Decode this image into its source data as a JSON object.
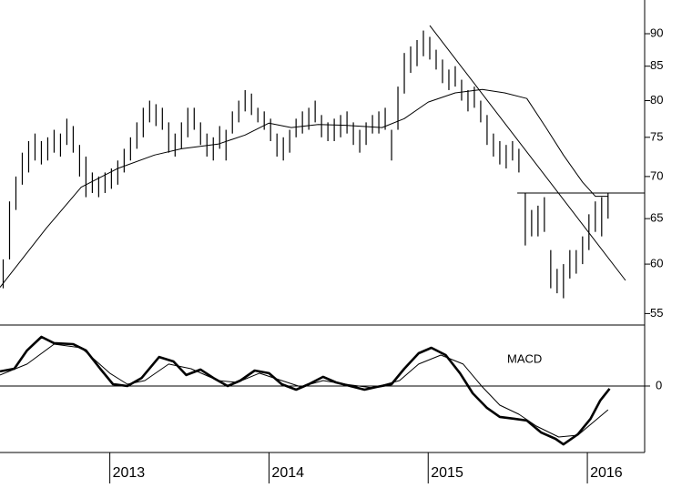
{
  "chart_data": {
    "type": "stock",
    "color": "#000000",
    "log_y": true,
    "xlim": [
      2012.31,
      2016.36
    ],
    "xticks": [
      2013,
      2014,
      2015,
      2016
    ],
    "ylim": [
      53.9,
      95.5
    ],
    "yticks": [
      55,
      60,
      65,
      70,
      75,
      80,
      85,
      90
    ],
    "x": [
      2012.33,
      2012.37,
      2012.41,
      2012.45,
      2012.49,
      2012.53,
      2012.57,
      2012.61,
      2012.65,
      2012.69,
      2012.73,
      2012.77,
      2012.81,
      2012.85,
      2012.89,
      2012.93,
      2012.97,
      2013.01,
      2013.05,
      2013.09,
      2013.13,
      2013.17,
      2013.21,
      2013.25,
      2013.29,
      2013.33,
      2013.37,
      2013.41,
      2013.45,
      2013.49,
      2013.53,
      2013.57,
      2013.61,
      2013.65,
      2013.69,
      2013.73,
      2013.77,
      2013.81,
      2013.85,
      2013.89,
      2013.93,
      2013.97,
      2014.01,
      2014.05,
      2014.09,
      2014.13,
      2014.17,
      2014.21,
      2014.25,
      2014.29,
      2014.33,
      2014.37,
      2014.41,
      2014.45,
      2014.49,
      2014.53,
      2014.57,
      2014.61,
      2014.65,
      2014.69,
      2014.73,
      2014.77,
      2014.81,
      2014.85,
      2014.89,
      2014.93,
      2014.97,
      2015.01,
      2015.05,
      2015.09,
      2015.13,
      2015.17,
      2015.21,
      2015.25,
      2015.29,
      2015.33,
      2015.37,
      2015.41,
      2015.45,
      2015.49,
      2015.53,
      2015.57,
      2015.61,
      2015.65,
      2015.69,
      2015.73,
      2015.77,
      2015.81,
      2015.85,
      2015.89,
      2015.93,
      2015.97,
      2016.01,
      2016.05,
      2016.09,
      2016.13
    ],
    "high": [
      60.5,
      67,
      70,
      73,
      74.5,
      75.5,
      74.5,
      75,
      76,
      75.5,
      77.5,
      76.5,
      74,
      72.5,
      70.5,
      70,
      70.5,
      71,
      72,
      73.5,
      75,
      77,
      79,
      80,
      79.5,
      79,
      77,
      75.5,
      77,
      79,
      79,
      77,
      75.5,
      75,
      76.5,
      76,
      78.5,
      80,
      81.5,
      81,
      79,
      78.5,
      77.5,
      75.5,
      75,
      76,
      77.5,
      78.5,
      79,
      80,
      78,
      77,
      77.5,
      78,
      78.5,
      77,
      76,
      77,
      78,
      78.5,
      79,
      76,
      82,
      87,
      88,
      89,
      90.5,
      89.5,
      87.5,
      86,
      84.5,
      85,
      83,
      81.5,
      82,
      80,
      78,
      75.5,
      74.5,
      74,
      74.5,
      73.5,
      68,
      66,
      66.5,
      67.5,
      61.5,
      59.5,
      60,
      61.5,
      61.5,
      63,
      65.5,
      67,
      67.5,
      68
    ],
    "low": [
      57.5,
      60.5,
      66,
      69,
      70.5,
      72,
      71.5,
      72,
      73,
      72.5,
      74,
      73,
      70,
      67.5,
      68,
      67.5,
      68,
      68.5,
      69,
      70.5,
      72,
      73.5,
      75,
      77,
      76.5,
      76,
      73,
      72.5,
      73.5,
      75,
      76,
      74,
      72.5,
      72,
      73.5,
      72,
      75.5,
      77,
      78.5,
      78,
      77,
      76,
      74.5,
      72.5,
      72,
      73,
      75,
      75.5,
      76,
      77,
      75,
      74.5,
      74.5,
      75,
      75.5,
      74,
      73,
      74,
      75.5,
      75.5,
      76,
      72,
      76,
      81,
      84,
      85,
      86.5,
      86,
      84.5,
      82.5,
      81.5,
      82,
      80,
      78.5,
      79,
      77,
      74,
      72.5,
      71.5,
      71,
      72,
      70.5,
      62,
      63,
      63,
      63.5,
      57.5,
      57,
      56.5,
      58.5,
      59,
      60,
      61.5,
      63.5,
      63,
      65
    ],
    "moving_average": {
      "x": [
        2012.31,
        2012.6,
        2012.82,
        2013.05,
        2013.28,
        2013.45,
        2013.68,
        2013.85,
        2014.0,
        2014.14,
        2014.31,
        2014.48,
        2014.71,
        2014.85,
        2015.0,
        2015.17,
        2015.34,
        2015.48,
        2015.62,
        2015.74,
        2015.85,
        2015.97,
        2016.05,
        2016.13
      ],
      "values": [
        57.6,
        63.9,
        68.7,
        71.0,
        72.7,
        73.5,
        74.1,
        75.3,
        76.9,
        76.3,
        76.7,
        76.6,
        76.3,
        77.5,
        79.8,
        81.1,
        81.6,
        81.1,
        80.3,
        76.3,
        72.7,
        69.3,
        67.6,
        67.6
      ]
    },
    "trendlines": [
      {
        "x": [
          2015.01,
          2016.24
        ],
        "y": [
          91.3,
          58.3
        ]
      },
      {
        "x": [
          2015.56,
          2016.36
        ],
        "y": [
          68,
          68
        ]
      }
    ],
    "macd": {
      "label": "MACD",
      "ylim": [
        -3.27,
        3
      ],
      "yticks": [
        0
      ],
      "line": {
        "x": [
          2012.31,
          2012.4,
          2012.48,
          2012.57,
          2012.65,
          2012.77,
          2012.85,
          2012.94,
          2013.02,
          2013.11,
          2013.2,
          2013.31,
          2013.4,
          2013.48,
          2013.57,
          2013.65,
          2013.74,
          2013.82,
          2013.91,
          2014.0,
          2014.08,
          2014.17,
          2014.25,
          2014.34,
          2014.42,
          2014.51,
          2014.6,
          2014.68,
          2014.77,
          2014.85,
          2014.94,
          2015.02,
          2015.11,
          2015.2,
          2015.28,
          2015.37,
          2015.45,
          2015.54,
          2015.62,
          2015.71,
          2015.8,
          2015.85,
          2015.94,
          2016.02,
          2016.08,
          2016.14
        ],
        "values": [
          0.72,
          0.85,
          1.75,
          2.42,
          2.11,
          2.06,
          1.75,
          0.85,
          0.09,
          0,
          0.4,
          1.43,
          1.21,
          0.54,
          0.81,
          0.4,
          0,
          0.27,
          0.76,
          0.63,
          0.09,
          -0.18,
          0.09,
          0.45,
          0.18,
          0,
          -0.18,
          -0.04,
          0.09,
          0.85,
          1.61,
          1.88,
          1.52,
          0.63,
          -0.36,
          -1.08,
          -1.52,
          -1.61,
          -1.7,
          -2.29,
          -2.6,
          -2.87,
          -2.38,
          -1.61,
          -0.72,
          -0.13
        ]
      },
      "signal": {
        "x": [
          2012.31,
          2012.48,
          2012.65,
          2012.82,
          2013.0,
          2013.11,
          2013.22,
          2013.37,
          2013.51,
          2013.68,
          2013.8,
          2013.94,
          2014.08,
          2014.2,
          2014.34,
          2014.48,
          2014.65,
          2014.82,
          2014.94,
          2015.08,
          2015.22,
          2015.34,
          2015.45,
          2015.57,
          2015.68,
          2015.82,
          2015.94,
          2016.05,
          2016.13
        ],
        "values": [
          0.54,
          1.08,
          2.06,
          1.88,
          0.63,
          0.09,
          0.27,
          1.08,
          0.85,
          0.27,
          0.18,
          0.63,
          0.27,
          -0.04,
          0.27,
          0.09,
          -0.09,
          0.27,
          1.08,
          1.52,
          1.08,
          -0.04,
          -0.94,
          -1.39,
          -1.97,
          -2.51,
          -2.42,
          -1.7,
          -1.17
        ]
      }
    }
  }
}
